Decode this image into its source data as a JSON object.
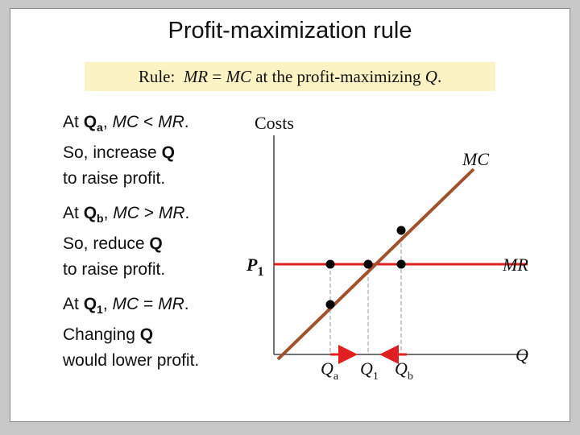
{
  "title": "Profit-maximization rule",
  "rule": [
    "Rule:  ",
    "MR",
    " = ",
    "MC",
    " at the profit-maximizing ",
    "Q",
    "."
  ],
  "notes": [
    [
      [
        "At ",
        "Q",
        "a",
        ", ",
        "MC",
        " < ",
        "MR",
        "."
      ],
      [
        "So, increase ",
        "Q"
      ],
      [
        "to raise profit."
      ]
    ],
    [
      [
        "At ",
        "Q",
        "b",
        ", ",
        "MC",
        " > ",
        "MR",
        "."
      ],
      [
        "So, reduce ",
        "Q"
      ],
      [
        "to raise profit."
      ]
    ],
    [
      [
        "At ",
        "Q",
        "1",
        ", ",
        "MC",
        " = ",
        "MR",
        "."
      ],
      [
        "Changing ",
        "Q"
      ],
      [
        "would lower profit."
      ]
    ]
  ],
  "diagram": {
    "y_axis": "Costs",
    "x_axis": "Q",
    "mc": "MC",
    "mr": "MR",
    "price": [
      "P",
      "1"
    ],
    "qa": [
      "Q",
      "a"
    ],
    "q1": [
      "Q",
      "1"
    ],
    "qb": [
      "Q",
      "b"
    ]
  }
}
